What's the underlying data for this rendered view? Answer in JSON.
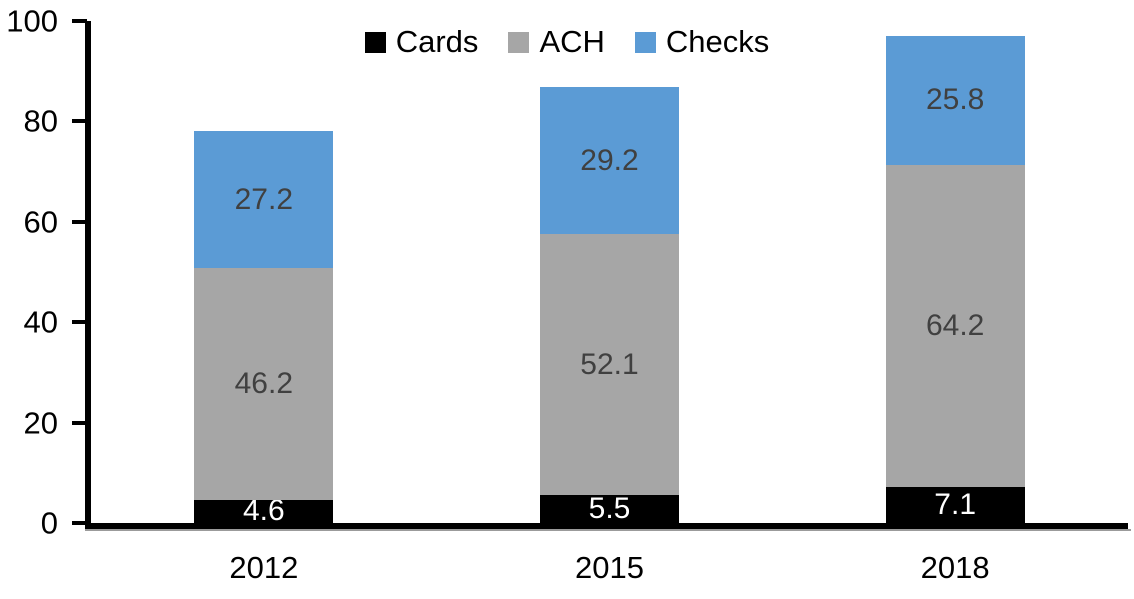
{
  "chart_data": {
    "type": "bar",
    "stacked": true,
    "title": "",
    "categories": [
      "2012",
      "2015",
      "2018"
    ],
    "series": [
      {
        "name": "Cards",
        "color": "#000000",
        "label_color": "#FFFFFF",
        "values": [
          4.6,
          5.5,
          7.1
        ],
        "labels": [
          "4.6",
          "5.5",
          "7.1"
        ]
      },
      {
        "name": "ACH",
        "color": "#A6A6A6",
        "label_color": "#404040",
        "values": [
          46.2,
          52.1,
          64.2
        ],
        "labels": [
          "46.2",
          "52.1",
          "64.2"
        ]
      },
      {
        "name": "Checks",
        "color": "#5B9BD5",
        "label_color": "#404040",
        "values": [
          27.2,
          29.2,
          25.8
        ],
        "labels": [
          "27.2",
          "29.2",
          "25.8"
        ]
      }
    ],
    "totals": [
      78.0,
      86.8,
      97.1
    ],
    "ylim": [
      0,
      100
    ],
    "ytick_values": [
      0,
      20,
      40,
      60,
      80,
      100
    ],
    "ytick_labels": [
      "0",
      "20",
      "40",
      "60",
      "80",
      "100"
    ],
    "xlabel": "",
    "ylabel": "",
    "grid": false,
    "legend": {
      "position": "top-center",
      "entries": [
        "Cards",
        "ACH",
        "Checks"
      ]
    },
    "axis_color": "#000000",
    "background": "#FFFFFF"
  }
}
